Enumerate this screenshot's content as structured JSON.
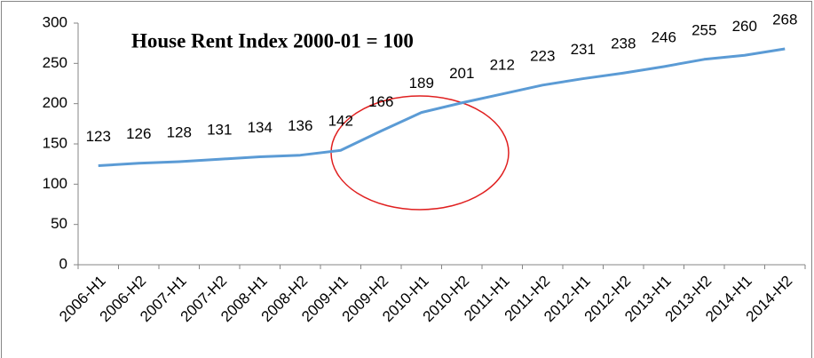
{
  "chart_data": {
    "type": "line",
    "title": "House Rent Index 2000-01 = 100",
    "categories": [
      "2006-H1",
      "2006-H2",
      "2007-H1",
      "2007-H2",
      "2008-H1",
      "2008-H2",
      "2009-H1",
      "2009-H2",
      "2010-H1",
      "2010-H2",
      "2011-H1",
      "2011-H2",
      "2012-H1",
      "2012-H2",
      "2013-H1",
      "2013-H2",
      "2014-H1",
      "2014-H2"
    ],
    "values": [
      123,
      126,
      128,
      131,
      134,
      136,
      142,
      166,
      189,
      201,
      212,
      223,
      231,
      238,
      246,
      255,
      260,
      268
    ],
    "color": "#5b9bd5",
    "ylim": [
      0,
      300
    ],
    "yticks": [
      0,
      50,
      100,
      150,
      200,
      250,
      300
    ],
    "grid": false
  }
}
